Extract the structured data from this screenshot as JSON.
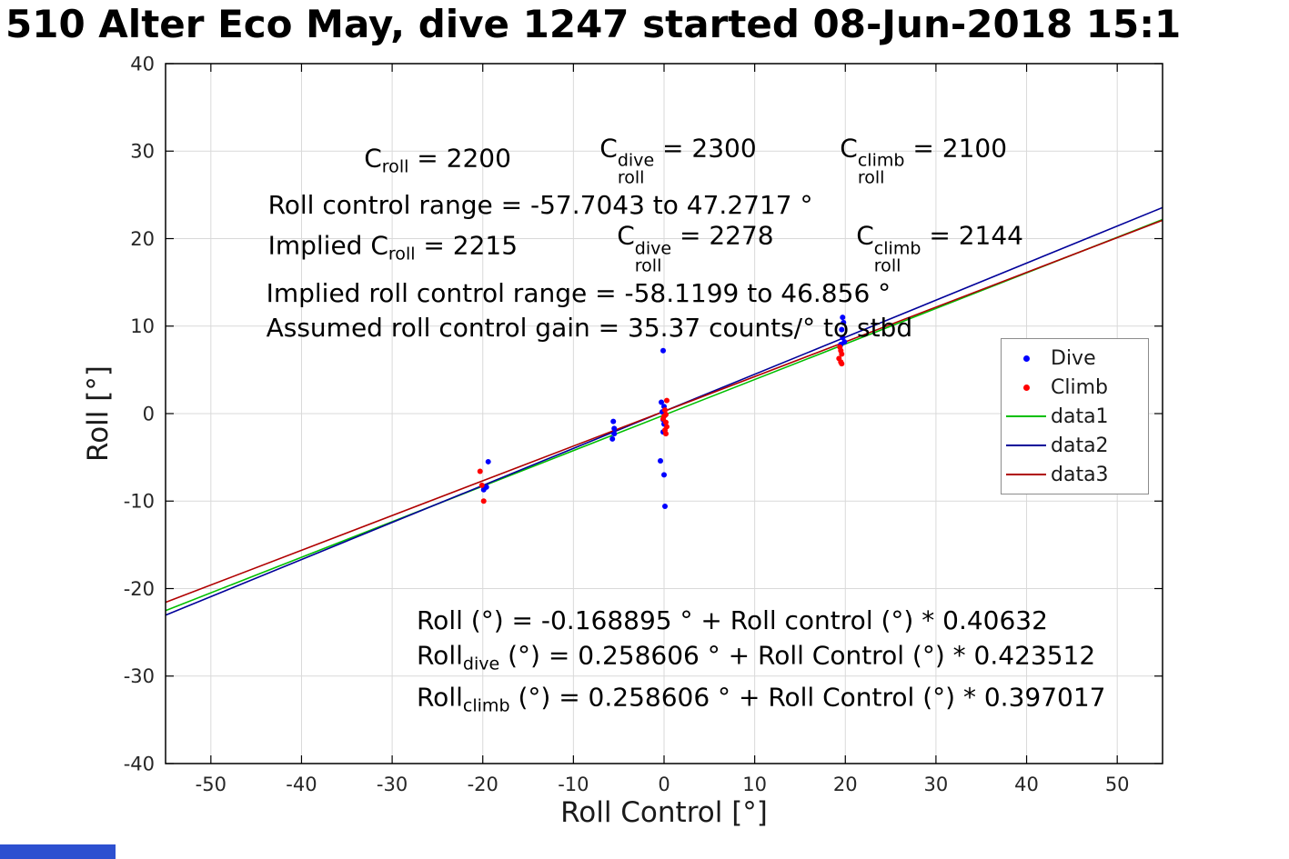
{
  "title": "510 Alter Eco May, dive 1247 started 08-Jun-2018 15:1",
  "decor": {
    "bottom_left_bar_color": "#2d50d0"
  },
  "chart_data": {
    "type": "scatter",
    "title": "510 Alter Eco May, dive 1247 started 08-Jun-2018 15:1",
    "xlabel": "Roll Control [°]",
    "ylabel": "Roll [°]",
    "xlim": [
      -55,
      55
    ],
    "ylim": [
      -40,
      40
    ],
    "xticks": [
      -50,
      -40,
      -30,
      -20,
      -10,
      0,
      10,
      20,
      30,
      40,
      50
    ],
    "yticks": [
      -40,
      -30,
      -20,
      -10,
      0,
      10,
      20,
      30,
      40
    ],
    "grid": true,
    "grid_color": "#d9d9d9",
    "axis_color": "#000000",
    "legend": {
      "position": "right-inside",
      "entries": [
        {
          "label": "Dive",
          "marker": "dot",
          "color": "#0000ff"
        },
        {
          "label": "Climb",
          "marker": "dot",
          "color": "#ff0000"
        },
        {
          "label": "data1",
          "marker": "line",
          "color": "#00bf00"
        },
        {
          "label": "data2",
          "marker": "line",
          "color": "#000099"
        },
        {
          "label": "data3",
          "marker": "line",
          "color": "#b00000"
        }
      ]
    },
    "series": [
      {
        "name": "Dive",
        "type": "scatter",
        "color": "#0000ff",
        "points": [
          [
            -19.4,
            -5.5
          ],
          [
            -19.6,
            -8.4
          ],
          [
            -19.9,
            -8.7
          ],
          [
            -5.6,
            -0.9
          ],
          [
            -5.5,
            -1.7
          ],
          [
            -5.5,
            -2.3
          ],
          [
            -5.7,
            -2.9
          ],
          [
            -0.1,
            7.2
          ],
          [
            -0.3,
            1.3
          ],
          [
            0.0,
            0.8
          ],
          [
            -0.2,
            0.2
          ],
          [
            0.1,
            -0.2
          ],
          [
            -0.1,
            -0.7
          ],
          [
            0.0,
            -1.2
          ],
          [
            -0.1,
            -2.1
          ],
          [
            -0.4,
            -5.4
          ],
          [
            0.0,
            -7.0
          ],
          [
            0.1,
            -10.6
          ],
          [
            19.7,
            11.0
          ],
          [
            19.8,
            10.4
          ],
          [
            19.6,
            9.6
          ],
          [
            19.7,
            8.7
          ],
          [
            19.9,
            8.2
          ],
          [
            19.5,
            7.9
          ]
        ]
      },
      {
        "name": "Climb",
        "type": "scatter",
        "color": "#ff0000",
        "points": [
          [
            -20.3,
            -6.6
          ],
          [
            -20.1,
            -8.2
          ],
          [
            -19.9,
            -10.0
          ],
          [
            0.3,
            1.5
          ],
          [
            0.1,
            0.4
          ],
          [
            0.2,
            -0.1
          ],
          [
            -0.1,
            -0.6
          ],
          [
            0.2,
            -1.0
          ],
          [
            0.3,
            -1.5
          ],
          [
            0.1,
            -1.9
          ],
          [
            0.2,
            -2.3
          ],
          [
            0.0,
            -0.3
          ],
          [
            19.4,
            7.6
          ],
          [
            19.5,
            7.2
          ],
          [
            19.6,
            6.8
          ],
          [
            19.3,
            6.3
          ],
          [
            19.5,
            5.9
          ],
          [
            19.6,
            5.7
          ]
        ]
      },
      {
        "name": "data1",
        "type": "line",
        "color": "#00bf00",
        "slope": 0.40632,
        "intercept": -0.168895,
        "x_range": [
          -55,
          55
        ]
      },
      {
        "name": "data2",
        "type": "line",
        "color": "#000099",
        "slope": 0.423512,
        "intercept": 0.258606,
        "x_range": [
          -55,
          55
        ]
      },
      {
        "name": "data3",
        "type": "line",
        "color": "#b00000",
        "slope": 0.397017,
        "intercept": 0.258606,
        "x_range": [
          -55,
          55
        ]
      }
    ],
    "annotations": [
      {
        "x": -33.1,
        "y": 28.9,
        "text": "C_{roll} = 2200"
      },
      {
        "x": -7.1,
        "y": 28.9,
        "text": "C_{roll}^{dive} = 2300"
      },
      {
        "x": 19.4,
        "y": 28.9,
        "text": "C_{roll}^{climb} = 2100"
      },
      {
        "x": -43.7,
        "y": 23.8,
        "text": "Roll control range = -57.7043 to 47.2717 °"
      },
      {
        "x": -43.7,
        "y": 18.9,
        "text": "Implied C_{roll} = 2215"
      },
      {
        "x": -5.2,
        "y": 18.9,
        "text": "C_{roll}^{dive} = 2278"
      },
      {
        "x": 21.2,
        "y": 18.9,
        "text": "C_{roll}^{climb} = 2144"
      },
      {
        "x": -43.9,
        "y": 13.7,
        "text": "Implied roll control range = -58.1199 to 46.856 °"
      },
      {
        "x": -43.9,
        "y": 9.8,
        "text": "Assumed roll control gain = 35.37 counts/° to stbd"
      },
      {
        "x": -27.3,
        "y": -23.7,
        "text": "Roll (°) = -0.168895 ° + Roll control (°) * 0.40632"
      },
      {
        "x": -27.3,
        "y": -27.9,
        "text": "Roll_{dive} (°) = 0.258606 ° + Roll Control (°) * 0.423512"
      },
      {
        "x": -27.3,
        "y": -32.7,
        "text": "Roll_{climb} (°) = 0.258606 ° + Roll Control (°) * 0.397017"
      }
    ]
  }
}
